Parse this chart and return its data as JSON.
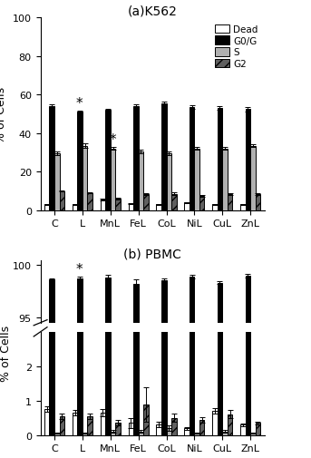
{
  "categories": [
    "C",
    "L",
    "MnL",
    "FeL",
    "CoL",
    "NiL",
    "CuL",
    "ZnL"
  ],
  "title_a": "(a)K562",
  "title_b": "(b) PBMC",
  "ylabel": "% of Cells",
  "legend_labels": [
    "Dead",
    "G0/G",
    "S",
    "G2"
  ],
  "k562_dead": [
    3.0,
    3.0,
    5.5,
    3.5,
    3.0,
    4.0,
    3.0,
    3.0
  ],
  "k562_g0g": [
    54.0,
    51.0,
    52.0,
    54.0,
    55.5,
    53.5,
    53.0,
    52.5
  ],
  "k562_s": [
    29.5,
    33.5,
    32.0,
    30.5,
    29.5,
    32.0,
    32.0,
    33.5
  ],
  "k562_g2": [
    10.0,
    9.0,
    6.0,
    8.5,
    8.5,
    7.5,
    8.5,
    8.5
  ],
  "k562_dead_err": [
    0.3,
    0.3,
    0.5,
    0.3,
    0.3,
    0.3,
    0.3,
    0.3
  ],
  "k562_g0g_err": [
    0.8,
    0.8,
    0.8,
    0.8,
    0.8,
    0.8,
    0.8,
    1.2
  ],
  "k562_s_err": [
    0.8,
    1.2,
    0.8,
    0.8,
    0.8,
    0.8,
    0.8,
    0.8
  ],
  "k562_g2_err": [
    0.4,
    0.4,
    0.4,
    0.4,
    0.8,
    0.4,
    0.4,
    0.4
  ],
  "pbmc_dead": [
    0.75,
    0.65,
    0.65,
    0.35,
    0.3,
    0.2,
    0.7,
    0.3
  ],
  "pbmc_g0g": [
    98.6,
    98.75,
    98.8,
    98.2,
    98.5,
    98.9,
    98.3,
    98.95
  ],
  "pbmc_s": [
    0.05,
    0.05,
    0.1,
    0.1,
    0.2,
    0.05,
    0.1,
    0.05
  ],
  "pbmc_g2": [
    0.55,
    0.55,
    0.35,
    0.9,
    0.5,
    0.45,
    0.6,
    0.35
  ],
  "pbmc_dead_err": [
    0.08,
    0.08,
    0.1,
    0.15,
    0.08,
    0.04,
    0.08,
    0.04
  ],
  "pbmc_g0g_err": [
    0.15,
    0.15,
    0.25,
    0.4,
    0.25,
    0.15,
    0.15,
    0.15
  ],
  "pbmc_s_err": [
    0.01,
    0.01,
    0.04,
    0.04,
    0.08,
    0.01,
    0.04,
    0.01
  ],
  "pbmc_g2_err": [
    0.08,
    0.08,
    0.08,
    0.5,
    0.12,
    0.08,
    0.12,
    0.04
  ],
  "colors": [
    "white",
    "black",
    "#b0b0b0",
    "#606060"
  ],
  "hatches": [
    "",
    "",
    "",
    "///"
  ]
}
